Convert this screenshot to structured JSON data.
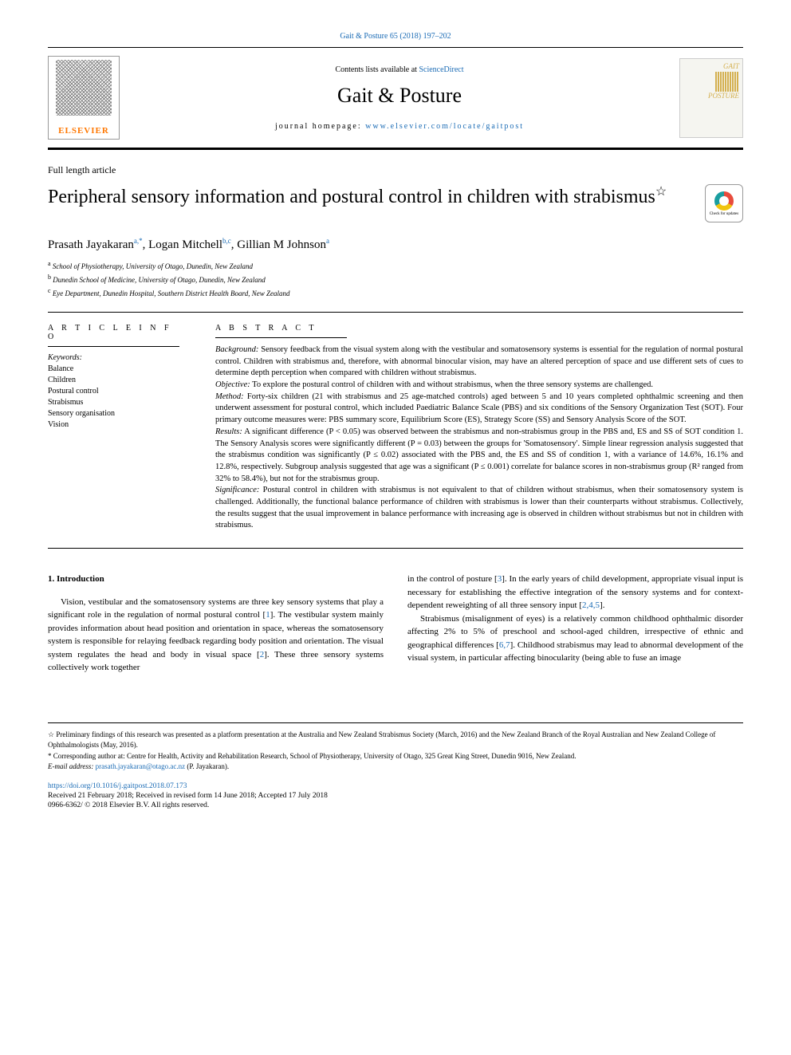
{
  "journal_link_top": "Gait & Posture 65 (2018) 197–202",
  "header": {
    "contents_prefix": "Contents lists available at ",
    "contents_link": "ScienceDirect",
    "journal_name": "Gait & Posture",
    "homepage_prefix": "journal homepage: ",
    "homepage_link": "www.elsevier.com/locate/gaitpost",
    "elsevier": "ELSEVIER",
    "cover_line1": "GAIT",
    "cover_line2": "POSTURE"
  },
  "article_type": "Full length article",
  "title": "Peripheral sensory information and postural control in children with strabismus",
  "title_star": "☆",
  "check_updates": "Check for updates",
  "authors_html": "Prasath Jayakaran",
  "authors": [
    {
      "name": "Prasath Jayakaran",
      "sup": "a,*"
    },
    {
      "name": "Logan Mitchell",
      "sup": "b,c"
    },
    {
      "name": "Gillian M Johnson",
      "sup": "a"
    }
  ],
  "affiliations": [
    {
      "sup": "a",
      "text": "School of Physiotherapy, University of Otago, Dunedin, New Zealand"
    },
    {
      "sup": "b",
      "text": "Dunedin School of Medicine, University of Otago, Dunedin, New Zealand"
    },
    {
      "sup": "c",
      "text": "Eye Department, Dunedin Hospital, Southern District Health Board, New Zealand"
    }
  ],
  "info_header": "A R T I C L E  I N F O",
  "keywords_label": "Keywords:",
  "keywords": [
    "Balance",
    "Children",
    "Postural control",
    "Strabismus",
    "Sensory organisation",
    "Vision"
  ],
  "abstract_header": "A B S T R A C T",
  "abstract": {
    "background_label": "Background:",
    "background": " Sensory feedback from the visual system along with the vestibular and somatosensory systems is essential for the regulation of normal postural control. Children with strabismus and, therefore, with abnormal binocular vision, may have an altered perception of space and use different sets of cues to determine depth perception when compared with children without strabismus.",
    "objective_label": "Objective:",
    "objective": " To explore the postural control of children with and without strabismus, when the three sensory systems are challenged.",
    "method_label": "Method:",
    "method": " Forty-six children (21 with strabismus and 25 age-matched controls) aged between 5 and 10 years completed ophthalmic screening and then underwent assessment for postural control, which included Paediatric Balance Scale (PBS) and six conditions of the Sensory Organization Test (SOT). Four primary outcome measures were: PBS summary score, Equilibrium Score (ES), Strategy Score (SS) and Sensory Analysis Score of the SOT.",
    "results_label": "Results:",
    "results": " A significant difference (P < 0.05) was observed between the strabismus and non-strabismus group in the PBS and, ES and SS of SOT condition 1. The Sensory Analysis scores were significantly different (P = 0.03) between the groups for 'Somatosensory'. Simple linear regression analysis suggested that the strabismus condition was significantly (P ≤ 0.02) associated with the PBS and, the ES and SS of condition 1, with a variance of 14.6%, 16.1% and 12.8%, respectively. Subgroup analysis suggested that age was a significant (P ≤ 0.001) correlate for balance scores in non-strabismus group (R² ranged from 32% to 58.4%), but not for the strabismus group.",
    "significance_label": "Significance:",
    "significance": " Postural control in children with strabismus is not equivalent to that of children without strabismus, when their somatosensory system is challenged. Additionally, the functional balance performance of children with strabismus is lower than their counterparts without strabismus. Collectively, the results suggest that the usual improvement in balance performance with increasing age is observed in children without strabismus but not in children with strabismus."
  },
  "intro_heading": "1. Introduction",
  "intro_col1_p1_a": "Vision, vestibular and the somatosensory systems are three key sensory systems that play a significant role in the regulation of normal postural control [",
  "intro_ref1": "1",
  "intro_col1_p1_b": "]. The vestibular system mainly provides information about head position and orientation in space, whereas the somatosensory system is responsible for relaying feedback regarding body position and orientation. The visual system regulates the head and body in visual space [",
  "intro_ref2": "2",
  "intro_col1_p1_c": "]. These three sensory systems collectively work together",
  "intro_col2_p1_a": "in the control of posture [",
  "intro_ref3": "3",
  "intro_col2_p1_b": "]. In the early years of child development, appropriate visual input is necessary for establishing the effective integration of the sensory systems and for context-dependent reweighting of all three sensory input [",
  "intro_ref245": "2,4,5",
  "intro_col2_p1_c": "].",
  "intro_col2_p2_a": "Strabismus (misalignment of eyes) is a relatively common childhood ophthalmic disorder affecting 2% to 5% of preschool and school-aged children, irrespective of ethnic and geographical differences [",
  "intro_ref67": "6,7",
  "intro_col2_p2_b": "]. Childhood strabismus may lead to abnormal development of the visual system, in particular affecting binocularity (being able to fuse an image",
  "footnotes": {
    "preliminary": "☆ Preliminary findings of this research was presented as a platform presentation at the Australia and New Zealand Strabismus Society (March, 2016) and the New Zealand Branch of the Royal Australian and New Zealand College of Ophthalmologists (May, 2016).",
    "corresponding": "* Corresponding author at: Centre for Health, Activity and Rehabilitation Research, School of Physiotherapy, University of Otago, 325 Great King Street, Dunedin 9016, New Zealand.",
    "email_label": "E-mail address: ",
    "email": "prasath.jayakaran@otago.ac.nz",
    "email_suffix": " (P. Jayakaran)."
  },
  "doi": "https://doi.org/10.1016/j.gaitpost.2018.07.173",
  "received": "Received 21 February 2018; Received in revised form 14 June 2018; Accepted 17 July 2018",
  "copyright": "0966-6362/ © 2018 Elsevier B.V. All rights reserved."
}
